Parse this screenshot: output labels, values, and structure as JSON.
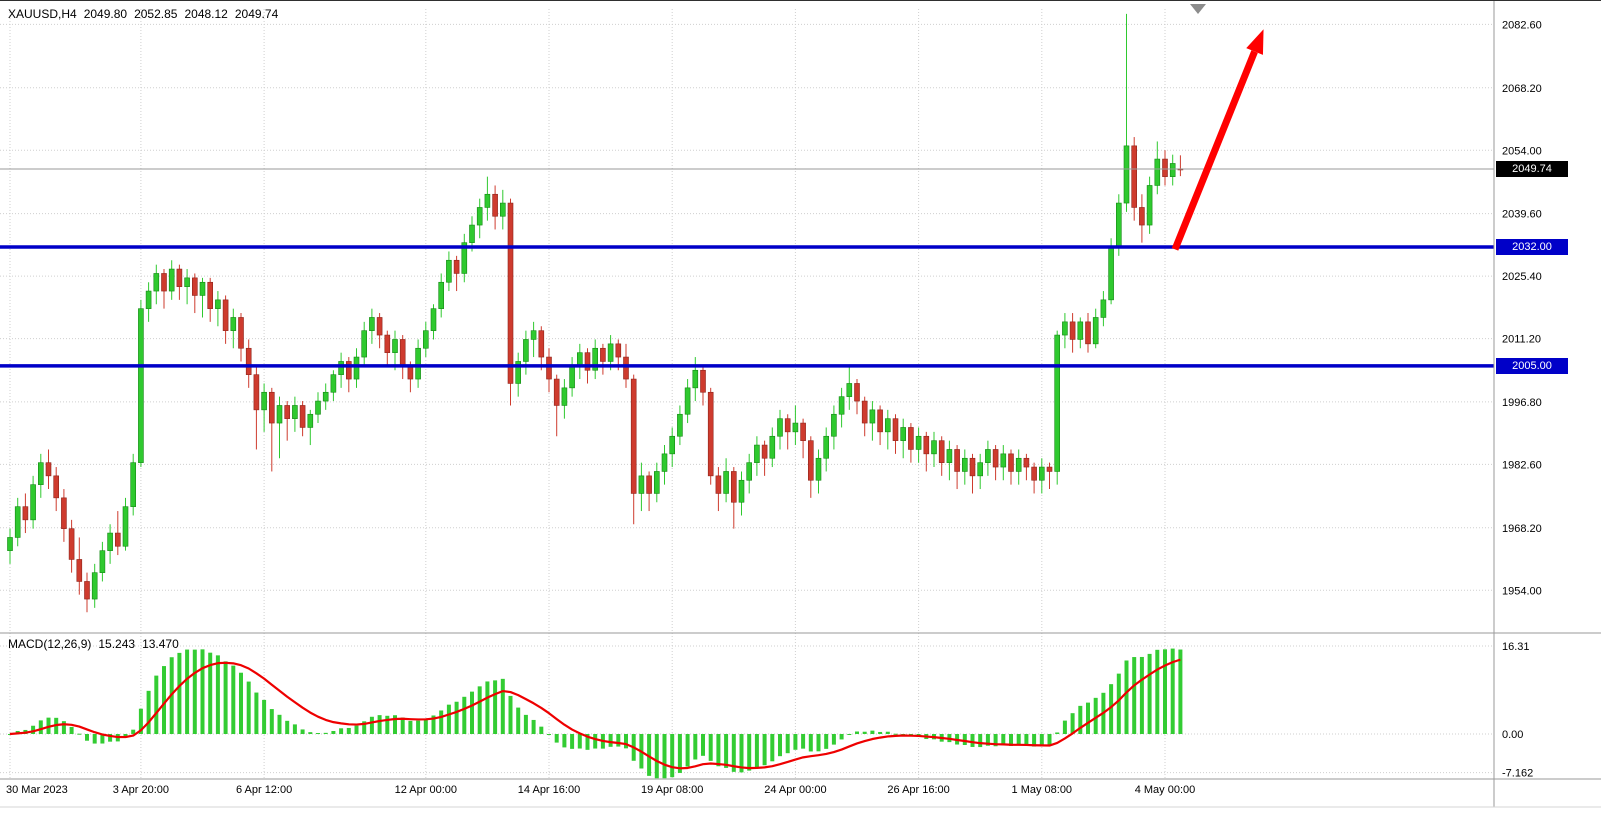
{
  "header": {
    "symbol": "XAUUSD,H4",
    "open": "2049.80",
    "high": "2052.85",
    "low": "2048.12",
    "close": "2049.74"
  },
  "indicator": {
    "label": "MACD(12,26,9)",
    "macd_value": "15.243",
    "signal_value": "13.470"
  },
  "price_axis": {
    "labels": [
      "2082.60",
      "2068.20",
      "2054.00",
      "2039.60",
      "2025.40",
      "2011.20",
      "1996.80",
      "1982.60",
      "1968.20",
      "1954.00"
    ],
    "current_price_label": "2049.74"
  },
  "time_axis": {
    "ticks": [
      {
        "label": "30 Mar 2023",
        "index": 0
      },
      {
        "label": "3 Apr 20:00",
        "index": 17
      },
      {
        "label": "6 Apr 12:00",
        "index": 33
      },
      {
        "label": "12 Apr 00:00",
        "index": 54
      },
      {
        "label": "14 Apr 16:00",
        "index": 70
      },
      {
        "label": "19 Apr 08:00",
        "index": 86
      },
      {
        "label": "24 Apr 00:00",
        "index": 102
      },
      {
        "label": "26 Apr 16:00",
        "index": 118
      },
      {
        "label": "1 May 08:00",
        "index": 134
      },
      {
        "label": "4 May 00:00",
        "index": 150
      }
    ]
  },
  "macd_axis": {
    "labels": [
      {
        "text": "16.31",
        "value": 16.31
      },
      {
        "text": "0.00",
        "value": 0
      },
      {
        "text": "-7.162",
        "value": -7.162
      }
    ]
  },
  "annotations": {
    "hlines": [
      {
        "price": 2032.0,
        "label": "2032.00",
        "color": "#0000C8"
      },
      {
        "price": 2005.0,
        "label": "2005.00",
        "color": "#0000C8"
      }
    ],
    "arrow": {
      "from": {
        "index": 151.3,
        "price": 2031.5
      },
      "to": {
        "index": 162.8,
        "price": 2081.5
      },
      "color": "#FF0000"
    }
  },
  "colors": {
    "bull": "#2FC92F",
    "bull_border": "#138813",
    "bear": "#CE3B2E",
    "bear_border": "#8E241B",
    "histogram": "#33CC33",
    "signal": "#EE0000",
    "hline": "#0000C8",
    "grid": "#CFCFCF",
    "current_line": "#9A9A9A"
  },
  "chart_data": {
    "type": "candlestick+macd",
    "symbol": "XAUUSD",
    "timeframe": "H4",
    "title": "XAUUSD,H4 2049.80 2052.85 2048.12 2049.74",
    "price_ylim": [
      1948,
      2090
    ],
    "macd_ylim": [
      -8.3,
      18.7
    ],
    "indicator": {
      "name": "MACD",
      "params": [
        12,
        26,
        9
      ],
      "current_macd": 15.243,
      "current_signal": 13.47
    },
    "support_resistance_levels": [
      2032.0,
      2005.0
    ],
    "candles_ohlc": [
      [
        1963,
        1968,
        1960,
        1966
      ],
      [
        1966,
        1975,
        1964,
        1973
      ],
      [
        1973,
        1976,
        1967,
        1970
      ],
      [
        1970,
        1980,
        1968,
        1978
      ],
      [
        1978,
        1985,
        1975,
        1983
      ],
      [
        1983,
        1986,
        1977,
        1980
      ],
      [
        1980,
        1982,
        1972,
        1975
      ],
      [
        1975,
        1977,
        1965,
        1968
      ],
      [
        1968,
        1970,
        1958,
        1961
      ],
      [
        1961,
        1966,
        1953,
        1956
      ],
      [
        1956,
        1958,
        1949,
        1952
      ],
      [
        1952,
        1960,
        1950,
        1958
      ],
      [
        1958,
        1965,
        1956,
        1963
      ],
      [
        1963,
        1969,
        1960,
        1967
      ],
      [
        1967,
        1972,
        1962,
        1964
      ],
      [
        1964,
        1975,
        1963,
        1973
      ],
      [
        1973,
        1985,
        1971,
        1983
      ],
      [
        1983,
        2020,
        1982,
        2018
      ],
      [
        2018,
        2024,
        2015,
        2022
      ],
      [
        2022,
        2028,
        2019,
        2026
      ],
      [
        2026,
        2027,
        2018,
        2022
      ],
      [
        2022,
        2029,
        2020,
        2027
      ],
      [
        2027,
        2028,
        2020,
        2023
      ],
      [
        2023,
        2027,
        2019,
        2025
      ],
      [
        2025,
        2026,
        2017,
        2021
      ],
      [
        2021,
        2025,
        2016,
        2024
      ],
      [
        2024,
        2025,
        2015,
        2018
      ],
      [
        2018,
        2022,
        2014,
        2020
      ],
      [
        2020,
        2021,
        2010,
        2013
      ],
      [
        2013,
        2018,
        2009,
        2016
      ],
      [
        2016,
        2017,
        2006,
        2009
      ],
      [
        2009,
        2011,
        2000,
        2003
      ],
      [
        2003,
        2005,
        1986,
        1995
      ],
      [
        1995,
        2001,
        1990,
        1999
      ],
      [
        1999,
        2000,
        1981,
        1992
      ],
      [
        1992,
        1998,
        1984,
        1996
      ],
      [
        1996,
        1997,
        1988,
        1993
      ],
      [
        1993,
        1998,
        1990,
        1996
      ],
      [
        1996,
        1997,
        1989,
        1991
      ],
      [
        1991,
        1995,
        1987,
        1994
      ],
      [
        1994,
        1999,
        1992,
        1997
      ],
      [
        1997,
        2001,
        1995,
        1999
      ],
      [
        1999,
        2004,
        1997,
        2003
      ],
      [
        2003,
        2008,
        2000,
        2006
      ],
      [
        2006,
        2007,
        1999,
        2002
      ],
      [
        2002,
        2009,
        2000,
        2007
      ],
      [
        2007,
        2015,
        2005,
        2013
      ],
      [
        2013,
        2018,
        2010,
        2016
      ],
      [
        2016,
        2017,
        2009,
        2012
      ],
      [
        2012,
        2013,
        2005,
        2008
      ],
      [
        2008,
        2013,
        2004,
        2011
      ],
      [
        2011,
        2012,
        2002,
        2005
      ],
      [
        2005,
        2006,
        1999,
        2002
      ],
      [
        2002,
        2011,
        2000,
        2009
      ],
      [
        2009,
        2015,
        2007,
        2013
      ],
      [
        2013,
        2019,
        2011,
        2018
      ],
      [
        2018,
        2026,
        2016,
        2024
      ],
      [
        2024,
        2031,
        2022,
        2029
      ],
      [
        2029,
        2030,
        2022,
        2026
      ],
      [
        2026,
        2035,
        2024,
        2033
      ],
      [
        2033,
        2039,
        2031,
        2037
      ],
      [
        2037,
        2043,
        2034,
        2041
      ],
      [
        2041,
        2048,
        2038,
        2044
      ],
      [
        2044,
        2046,
        2036,
        2039
      ],
      [
        2039,
        2045,
        2036,
        2042
      ],
      [
        2042,
        2043,
        1996,
        2001
      ],
      [
        2001,
        2008,
        1998,
        2006
      ],
      [
        2006,
        2013,
        2003,
        2011
      ],
      [
        2011,
        2015,
        2007,
        2013
      ],
      [
        2013,
        2014,
        2004,
        2007
      ],
      [
        2007,
        2009,
        1999,
        2002
      ],
      [
        2002,
        2003,
        1989,
        1996
      ],
      [
        1996,
        2002,
        1993,
        2000
      ],
      [
        2000,
        2007,
        1998,
        2005
      ],
      [
        2005,
        2010,
        2002,
        2008
      ],
      [
        2008,
        2009,
        2001,
        2004
      ],
      [
        2004,
        2011,
        2002,
        2009
      ],
      [
        2009,
        2010,
        2003,
        2006
      ],
      [
        2006,
        2012,
        2004,
        2010
      ],
      [
        2010,
        2011,
        2004,
        2007
      ],
      [
        2007,
        2010,
        2000,
        2002
      ],
      [
        2002,
        2003,
        1969,
        1976
      ],
      [
        1976,
        1983,
        1972,
        1980
      ],
      [
        1980,
        1981,
        1972,
        1976
      ],
      [
        1976,
        1983,
        1974,
        1981
      ],
      [
        1981,
        1987,
        1978,
        1985
      ],
      [
        1985,
        1991,
        1982,
        1989
      ],
      [
        1989,
        1996,
        1987,
        1994
      ],
      [
        1994,
        2002,
        1992,
        2000
      ],
      [
        2000,
        2007,
        1997,
        2004
      ],
      [
        2004,
        2005,
        1996,
        1999
      ],
      [
        1999,
        2000,
        1978,
        1980
      ],
      [
        1980,
        1982,
        1972,
        1976
      ],
      [
        1976,
        1984,
        1974,
        1981
      ],
      [
        1981,
        1982,
        1968,
        1974
      ],
      [
        1974,
        1981,
        1971,
        1979
      ],
      [
        1979,
        1985,
        1976,
        1983
      ],
      [
        1983,
        1989,
        1980,
        1987
      ],
      [
        1987,
        1988,
        1980,
        1984
      ],
      [
        1984,
        1991,
        1982,
        1989
      ],
      [
        1989,
        1995,
        1986,
        1993
      ],
      [
        1993,
        1994,
        1986,
        1990
      ],
      [
        1990,
        1996,
        1987,
        1992
      ],
      [
        1992,
        1993,
        1984,
        1988
      ],
      [
        1988,
        1989,
        1975,
        1979
      ],
      [
        1979,
        1986,
        1976,
        1984
      ],
      [
        1984,
        1991,
        1981,
        1989
      ],
      [
        1989,
        1996,
        1986,
        1994
      ],
      [
        1994,
        2000,
        1991,
        1998
      ],
      [
        1998,
        2005,
        1995,
        2001
      ],
      [
        2001,
        2002,
        1994,
        1997
      ],
      [
        1997,
        1998,
        1989,
        1992
      ],
      [
        1992,
        1997,
        1988,
        1995
      ],
      [
        1995,
        1996,
        1987,
        1990
      ],
      [
        1990,
        1995,
        1986,
        1993
      ],
      [
        1993,
        1994,
        1985,
        1988
      ],
      [
        1988,
        1993,
        1984,
        1991
      ],
      [
        1991,
        1992,
        1983,
        1986
      ],
      [
        1986,
        1991,
        1983,
        1989
      ],
      [
        1989,
        1990,
        1981,
        1985
      ],
      [
        1985,
        1990,
        1982,
        1988
      ],
      [
        1988,
        1989,
        1980,
        1983
      ],
      [
        1983,
        1988,
        1979,
        1986
      ],
      [
        1986,
        1987,
        1977,
        1981
      ],
      [
        1981,
        1986,
        1978,
        1984
      ],
      [
        1984,
        1985,
        1976,
        1980
      ],
      [
        1980,
        1985,
        1977,
        1983
      ],
      [
        1983,
        1988,
        1980,
        1986
      ],
      [
        1986,
        1987,
        1979,
        1982
      ],
      [
        1982,
        1987,
        1979,
        1985
      ],
      [
        1985,
        1986,
        1978,
        1981
      ],
      [
        1981,
        1986,
        1978,
        1984
      ],
      [
        1984,
        1985,
        1979,
        1982
      ],
      [
        1982,
        1983,
        1976,
        1979
      ],
      [
        1979,
        1984,
        1976,
        1982
      ],
      [
        1982,
        1983,
        1977,
        1981
      ],
      [
        1981,
        2013,
        1978,
        2012
      ],
      [
        2012,
        2017,
        2009,
        2015
      ],
      [
        2015,
        2017,
        2008,
        2011
      ],
      [
        2011,
        2016,
        2009,
        2015
      ],
      [
        2015,
        2017,
        2008,
        2010
      ],
      [
        2010,
        2018,
        2009,
        2016
      ],
      [
        2016,
        2022,
        2014,
        2020
      ],
      [
        2020,
        2034,
        2019,
        2032
      ],
      [
        2032,
        2044,
        2030,
        2042
      ],
      [
        2042,
        2085,
        2040,
        2055
      ],
      [
        2055,
        2057,
        2038,
        2041
      ],
      [
        2041,
        2044,
        2033,
        2037
      ],
      [
        2037,
        2048,
        2035,
        2046
      ],
      [
        2046,
        2056,
        2044,
        2052
      ],
      [
        2052,
        2054,
        2046,
        2048
      ],
      [
        2048,
        2053,
        2046,
        2051
      ],
      [
        2049.8,
        2052.85,
        2048.12,
        2049.74
      ]
    ],
    "macd_note": "Histogram = MACD(12,26) of closes, red line = 9-period signal EMA, computed from candles_ohlc"
  }
}
